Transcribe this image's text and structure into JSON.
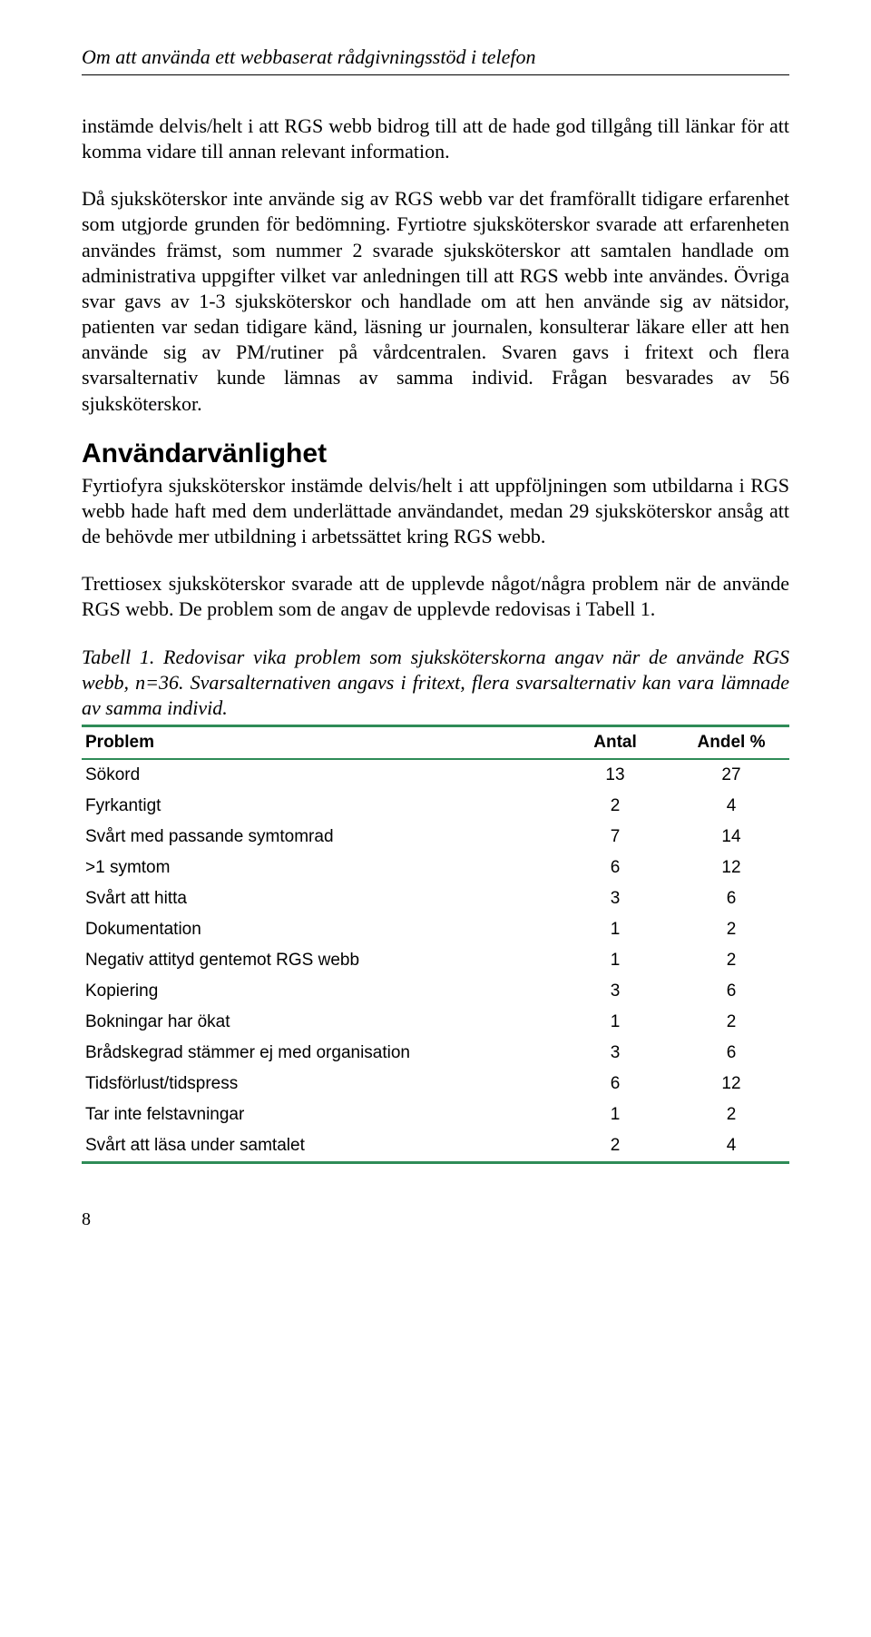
{
  "running_title": "Om att använda ett webbaserat rådgivningsstöd i telefon",
  "para1": "instämde delvis/helt i att RGS webb bidrog till att de hade god tillgång till länkar för att komma vidare till annan relevant information.",
  "para2": "Då sjuksköterskor inte använde sig av RGS webb var det framförallt tidigare erfarenhet som utgjorde grunden för bedömning. Fyrtiotre sjuksköterskor svarade att erfarenheten användes främst, som nummer 2 svarade sjuksköterskor att samtalen handlade om administrativa uppgifter vilket var anledningen till att RGS webb inte användes. Övriga svar gavs av 1-3 sjuksköterskor och handlade om att hen använde sig av nätsidor, patienten var sedan tidigare känd, läsning ur journalen, konsulterar läkare eller att hen använde sig av PM/rutiner på vårdcentralen. Svaren gavs i fritext och flera svarsalternativ kunde lämnas av samma individ. Frågan besvarades av 56 sjuksköterskor.",
  "section_heading": "Användarvänlighet",
  "para3": "Fyrtiofyra sjuksköterskor instämde delvis/helt i att uppföljningen som utbildarna i RGS webb hade haft med dem underlättade användandet, medan 29 sjuksköterskor ansåg att de behövde mer utbildning i arbetssättet kring RGS webb.",
  "para4": "Trettiosex sjuksköterskor svarade att de upplevde något/några problem när de använde RGS webb. De problem som de angav de upplevde redovisas i Tabell 1.",
  "table_caption": "Tabell 1. Redovisar vika problem som sjuksköterskorna angav när de använde RGS webb, n=36. Svarsalternativen angavs i fritext, flera svarsalternativ kan vara lämnade av samma individ.",
  "table": {
    "accent_color": "#2e8b57",
    "columns": [
      "Problem",
      "Antal",
      "Andel %"
    ],
    "rows": [
      [
        "Sökord",
        "13",
        "27"
      ],
      [
        "Fyrkantigt",
        "2",
        "4"
      ],
      [
        "Svårt med passande symtomrad",
        "7",
        "14"
      ],
      [
        ">1 symtom",
        "6",
        "12"
      ],
      [
        "Svårt att hitta",
        "3",
        "6"
      ],
      [
        "Dokumentation",
        "1",
        "2"
      ],
      [
        "Negativ attityd gentemot RGS webb",
        "1",
        "2"
      ],
      [
        "Kopiering",
        "3",
        "6"
      ],
      [
        "Bokningar har ökat",
        "1",
        "2"
      ],
      [
        "Brådskegrad stämmer ej med organisation",
        "3",
        "6"
      ],
      [
        "Tidsförlust/tidspress",
        "6",
        "12"
      ],
      [
        "Tar inte felstavningar",
        "1",
        "2"
      ],
      [
        "Svårt att läsa under samtalet",
        "2",
        "4"
      ]
    ]
  },
  "page_number": "8"
}
